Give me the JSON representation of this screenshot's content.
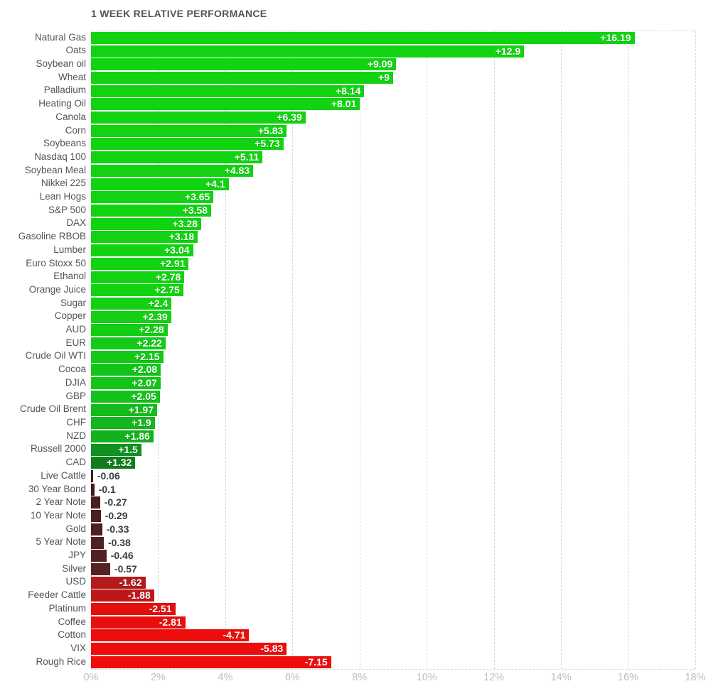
{
  "title": "1 WEEK RELATIVE PERFORMANCE",
  "colors": {
    "background": "#ffffff",
    "title_text": "#51565c",
    "category_text": "#51565c",
    "tick_text": "#b9bfc6",
    "gridline": "#d6d9dc",
    "value_inside_text": "#ffffff",
    "value_outside_text": "#3a3d42",
    "positive_bright": "#12d312",
    "negative_bright": "#ee0d0d"
  },
  "chart_data": {
    "type": "bar",
    "orientation": "horizontal",
    "title": "1 WEEK RELATIVE PERFORMANCE",
    "xlabel": "",
    "ylabel": "",
    "x_axis": {
      "min": 0,
      "max": 18,
      "unit": "%",
      "ticks": [
        "0%",
        "2%",
        "4%",
        "6%",
        "8%",
        "10%",
        "12%",
        "14%",
        "16%",
        "18%"
      ]
    },
    "layout_hints": {
      "grid": "vertical dashed lines every 2%",
      "bar_width_encodes": "absolute value of change",
      "color_encodes": "sign and magnitude (green positive, red negative, darker near zero)"
    },
    "items": [
      {
        "label": "Natural Gas",
        "value": 16.19,
        "display": "+16.19",
        "color": "#12d312",
        "label_inside": true
      },
      {
        "label": "Oats",
        "value": 12.9,
        "display": "+12.9",
        "color": "#12d312",
        "label_inside": true
      },
      {
        "label": "Soybean oil",
        "value": 9.09,
        "display": "+9.09",
        "color": "#12d312",
        "label_inside": true
      },
      {
        "label": "Wheat",
        "value": 9,
        "display": "+9",
        "color": "#12d312",
        "label_inside": true
      },
      {
        "label": "Palladium",
        "value": 8.14,
        "display": "+8.14",
        "color": "#12d312",
        "label_inside": true
      },
      {
        "label": "Heating Oil",
        "value": 8.01,
        "display": "+8.01",
        "color": "#12d312",
        "label_inside": true
      },
      {
        "label": "Canola",
        "value": 6.39,
        "display": "+6.39",
        "color": "#12d312",
        "label_inside": true
      },
      {
        "label": "Corn",
        "value": 5.83,
        "display": "+5.83",
        "color": "#12d312",
        "label_inside": true
      },
      {
        "label": "Soybeans",
        "value": 5.73,
        "display": "+5.73",
        "color": "#12d312",
        "label_inside": true
      },
      {
        "label": "Nasdaq 100",
        "value": 5.11,
        "display": "+5.11",
        "color": "#12d312",
        "label_inside": true
      },
      {
        "label": "Soybean Meal",
        "value": 4.83,
        "display": "+4.83",
        "color": "#12d312",
        "label_inside": true
      },
      {
        "label": "Nikkei 225",
        "value": 4.1,
        "display": "+4.1",
        "color": "#12d312",
        "label_inside": true
      },
      {
        "label": "Lean Hogs",
        "value": 3.65,
        "display": "+3.65",
        "color": "#12d312",
        "label_inside": true
      },
      {
        "label": "S&P 500",
        "value": 3.58,
        "display": "+3.58",
        "color": "#12d312",
        "label_inside": true
      },
      {
        "label": "DAX",
        "value": 3.28,
        "display": "+3.28",
        "color": "#12d312",
        "label_inside": true
      },
      {
        "label": "Gasoline RBOB",
        "value": 3.18,
        "display": "+3.18",
        "color": "#12d312",
        "label_inside": true
      },
      {
        "label": "Lumber",
        "value": 3.04,
        "display": "+3.04",
        "color": "#12d312",
        "label_inside": true
      },
      {
        "label": "Euro Stoxx 50",
        "value": 2.91,
        "display": "+2.91",
        "color": "#12d312",
        "label_inside": true
      },
      {
        "label": "Ethanol",
        "value": 2.78,
        "display": "+2.78",
        "color": "#12d312",
        "label_inside": true
      },
      {
        "label": "Orange Juice",
        "value": 2.75,
        "display": "+2.75",
        "color": "#12d312",
        "label_inside": true
      },
      {
        "label": "Sugar",
        "value": 2.4,
        "display": "+2.4",
        "color": "#13d013",
        "label_inside": true
      },
      {
        "label": "Copper",
        "value": 2.39,
        "display": "+2.39",
        "color": "#13d013",
        "label_inside": true
      },
      {
        "label": "AUD",
        "value": 2.28,
        "display": "+2.28",
        "color": "#13cd15",
        "label_inside": true
      },
      {
        "label": "EUR",
        "value": 2.22,
        "display": "+2.22",
        "color": "#13cb16",
        "label_inside": true
      },
      {
        "label": "Crude Oil WTI",
        "value": 2.15,
        "display": "+2.15",
        "color": "#13c817",
        "label_inside": true
      },
      {
        "label": "Cocoa",
        "value": 2.08,
        "display": "+2.08",
        "color": "#13c418",
        "label_inside": true
      },
      {
        "label": "DJIA",
        "value": 2.07,
        "display": "+2.07",
        "color": "#13c418",
        "label_inside": true
      },
      {
        "label": "GBP",
        "value": 2.05,
        "display": "+2.05",
        "color": "#13c319",
        "label_inside": true
      },
      {
        "label": "Crude Oil Brent",
        "value": 1.97,
        "display": "+1.97",
        "color": "#14bc1b",
        "label_inside": true
      },
      {
        "label": "CHF",
        "value": 1.9,
        "display": "+1.9",
        "color": "#14b51d",
        "label_inside": true
      },
      {
        "label": "NZD",
        "value": 1.86,
        "display": "+1.86",
        "color": "#14b11e",
        "label_inside": true
      },
      {
        "label": "Russell 2000",
        "value": 1.5,
        "display": "+1.5",
        "color": "#129021",
        "label_inside": true
      },
      {
        "label": "CAD",
        "value": 1.32,
        "display": "+1.32",
        "color": "#0f7d1e",
        "label_inside": true
      },
      {
        "label": "Live Cattle",
        "value": -0.06,
        "display": "-0.06",
        "color": "#401c1c",
        "label_inside": false
      },
      {
        "label": "30 Year Bond",
        "value": -0.1,
        "display": "-0.1",
        "color": "#421d1d",
        "label_inside": false
      },
      {
        "label": "2 Year Note",
        "value": -0.27,
        "display": "-0.27",
        "color": "#4a1f1f",
        "label_inside": false
      },
      {
        "label": "10 Year Note",
        "value": -0.29,
        "display": "-0.29",
        "color": "#4a1f1f",
        "label_inside": false
      },
      {
        "label": "Gold",
        "value": -0.33,
        "display": "-0.33",
        "color": "#4d1f20",
        "label_inside": false
      },
      {
        "label": "5 Year Note",
        "value": -0.38,
        "display": "-0.38",
        "color": "#4f2020",
        "label_inside": false
      },
      {
        "label": "JPY",
        "value": -0.46,
        "display": "-0.46",
        "color": "#522021",
        "label_inside": false
      },
      {
        "label": "Silver",
        "value": -0.57,
        "display": "-0.57",
        "color": "#562122",
        "label_inside": false
      },
      {
        "label": "USD",
        "value": -1.62,
        "display": "-1.62",
        "color": "#b21b1b",
        "label_inside": true
      },
      {
        "label": "Feeder Cattle",
        "value": -1.88,
        "display": "-1.88",
        "color": "#bf1717",
        "label_inside": true
      },
      {
        "label": "Platinum",
        "value": -2.51,
        "display": "-2.51",
        "color": "#e30f0f",
        "label_inside": true
      },
      {
        "label": "Coffee",
        "value": -2.81,
        "display": "-2.81",
        "color": "#e80e0e",
        "label_inside": true
      },
      {
        "label": "Cotton",
        "value": -4.71,
        "display": "-4.71",
        "color": "#ee0d0d",
        "label_inside": true
      },
      {
        "label": "VIX",
        "value": -5.83,
        "display": "-5.83",
        "color": "#ee0d0d",
        "label_inside": true
      },
      {
        "label": "Rough Rice",
        "value": -7.15,
        "display": "-7.15",
        "color": "#ee0d0d",
        "label_inside": true
      }
    ]
  }
}
